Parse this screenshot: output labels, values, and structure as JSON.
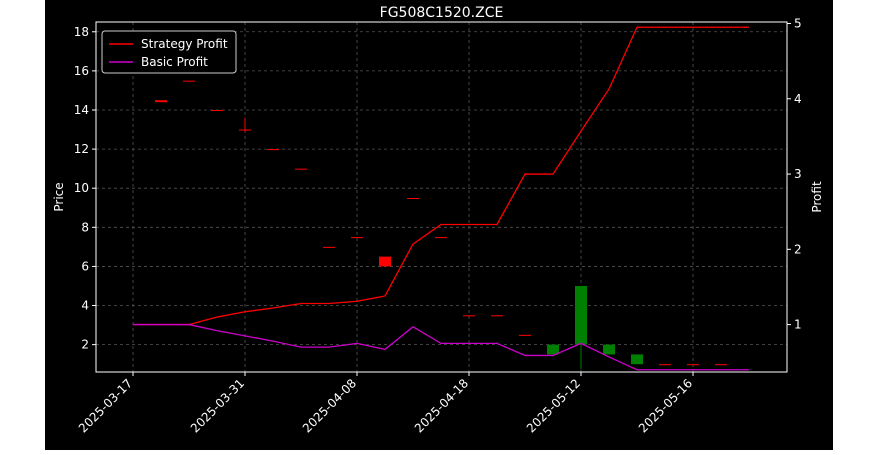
{
  "chart_data": {
    "type": "candlestick+line",
    "title": "FG508C1520.ZCE",
    "ylabel": "Price",
    "y2label": "Profit",
    "ylim": [
      0.6,
      18.5
    ],
    "y2lim": [
      0.37,
      5.02
    ],
    "yticks": [
      2,
      4,
      6,
      8,
      10,
      12,
      14,
      16,
      18
    ],
    "y2ticks": [
      1,
      2,
      3,
      4,
      5
    ],
    "x_tick_labels": [
      "2025-03-17",
      "2025-03-31",
      "2025-04-08",
      "2025-04-18",
      "2025-05-12",
      "2025-05-16"
    ],
    "x_tick_index": [
      0,
      4,
      8,
      12,
      16,
      20
    ],
    "grid": true,
    "legend_position": "upper-left",
    "colors": {
      "background": "#000000",
      "up": "#008000",
      "down": "#ff0000",
      "strategy": "#ff0000",
      "basic": "#cc00cc",
      "grid": "#555555"
    },
    "candles": [
      {
        "i": 1,
        "open": 14.5,
        "close": 14.4,
        "high": 14.5,
        "low": 14.4
      },
      {
        "i": 2,
        "open": 15.5,
        "close": 15.45,
        "high": 15.5,
        "low": 15.45
      },
      {
        "i": 3,
        "open": 14.0,
        "close": 13.95,
        "high": 14.0,
        "low": 13.95
      },
      {
        "i": 4,
        "open": 13.0,
        "close": 12.95,
        "high": 13.6,
        "low": 12.9
      },
      {
        "i": 5,
        "open": 12.0,
        "close": 11.95,
        "high": 12.0,
        "low": 11.95
      },
      {
        "i": 6,
        "open": 11.0,
        "close": 10.95,
        "high": 11.0,
        "low": 10.95
      },
      {
        "i": 7,
        "open": 7.0,
        "close": 6.95,
        "high": 7.0,
        "low": 6.95
      },
      {
        "i": 8,
        "open": 7.5,
        "close": 7.45,
        "high": 7.5,
        "low": 7.45
      },
      {
        "i": 9,
        "open": 6.5,
        "close": 6.0,
        "high": 6.5,
        "low": 6.0
      },
      {
        "i": 10,
        "open": 9.5,
        "close": 9.45,
        "high": 9.5,
        "low": 9.45
      },
      {
        "i": 11,
        "open": 7.5,
        "close": 7.45,
        "high": 7.5,
        "low": 7.45
      },
      {
        "i": 12,
        "open": 3.5,
        "close": 3.45,
        "high": 3.5,
        "low": 3.45
      },
      {
        "i": 13,
        "open": 3.5,
        "close": 3.45,
        "high": 3.5,
        "low": 3.45
      },
      {
        "i": 14,
        "open": 2.5,
        "close": 2.45,
        "high": 2.5,
        "low": 2.45
      },
      {
        "i": 15,
        "open": 1.5,
        "close": 2.0,
        "high": 2.0,
        "low": 1.5
      },
      {
        "i": 16,
        "open": 2.0,
        "close": 5.0,
        "high": 5.0,
        "low": 0.75
      },
      {
        "i": 17,
        "open": 1.5,
        "close": 2.0,
        "high": 2.0,
        "low": 1.5
      },
      {
        "i": 18,
        "open": 1.0,
        "close": 1.5,
        "high": 1.5,
        "low": 1.0
      },
      {
        "i": 19,
        "open": 1.0,
        "close": 0.95,
        "high": 1.0,
        "low": 0.95
      },
      {
        "i": 20,
        "open": 1.0,
        "close": 0.95,
        "high": 1.0,
        "low": 0.95
      },
      {
        "i": 21,
        "open": 1.0,
        "close": 0.95,
        "high": 1.0,
        "low": 0.95
      }
    ],
    "series": [
      {
        "name": "Strategy Profit",
        "axis": "right",
        "color": "#ff0000",
        "values": [
          1.0,
          1.0,
          1.0,
          1.1,
          1.17,
          1.22,
          1.28,
          1.28,
          1.31,
          1.38,
          2.07,
          2.33,
          2.33,
          2.33,
          3.0,
          3.0,
          3.57,
          4.13,
          4.95,
          4.95,
          4.95,
          4.95,
          4.95
        ]
      },
      {
        "name": "Basic Profit",
        "axis": "right",
        "color": "#cc00cc",
        "values": [
          1.0,
          1.0,
          1.0,
          0.92,
          0.85,
          0.78,
          0.7,
          0.7,
          0.75,
          0.67,
          0.97,
          0.75,
          0.75,
          0.75,
          0.59,
          0.59,
          0.75,
          0.57,
          0.4,
          0.4,
          0.4,
          0.4,
          0.4
        ]
      }
    ]
  }
}
